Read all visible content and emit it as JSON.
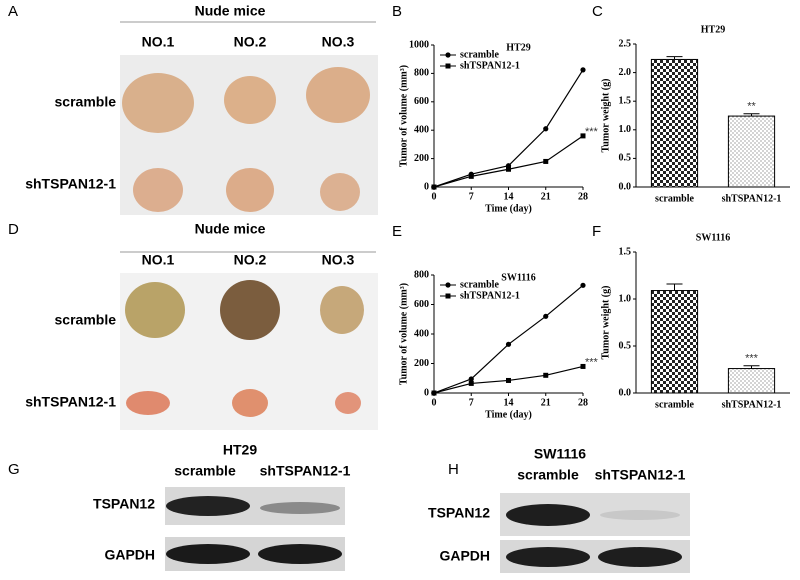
{
  "panels": [
    {
      "letter": "A",
      "title": "Nude mice",
      "columns": [
        "NO.1",
        "NO.2",
        "NO.3"
      ],
      "rows": [
        "scramble",
        "shTSPAN12-1"
      ]
    },
    {
      "letter": "D",
      "title": "Nude mice",
      "columns": [
        "NO.1",
        "NO.2",
        "NO.3"
      ],
      "rows": [
        "scramble",
        "shTSPAN12-1"
      ]
    }
  ],
  "chart_data": [
    {
      "type": "line",
      "letter": "B",
      "title": "HT29",
      "x_label": "Time (day)",
      "y_label": "Tumor of volume (mm³)",
      "x": [
        0,
        7,
        14,
        21,
        28
      ],
      "xlim": [
        0,
        28
      ],
      "xticks": [
        0,
        7,
        14,
        21,
        28
      ],
      "ylim": [
        0,
        1000
      ],
      "yticks": [
        0,
        200,
        400,
        600,
        800,
        1000
      ],
      "series": [
        {
          "name": "scramble",
          "color": "#000000",
          "values": [
            0,
            90,
            150,
            410,
            825
          ]
        },
        {
          "name": "shTSPAN12-1",
          "color": "#000000",
          "values": [
            0,
            75,
            125,
            180,
            360
          ]
        }
      ],
      "annotation": "***"
    },
    {
      "type": "bar",
      "letter": "C",
      "title": "HT29",
      "y_label": "Tumor weight (g)",
      "categories": [
        "scramble",
        "shTSPAN12-1"
      ],
      "values": [
        2.23,
        1.24
      ],
      "errors": [
        0.05,
        0.04
      ],
      "ylim": [
        0,
        2.5
      ],
      "yticks": [
        {
          "value": 0,
          "label": "0.0"
        },
        {
          "value": 0.5,
          "label": "0.5"
        },
        {
          "value": 1,
          "label": "1.0"
        },
        {
          "value": 1.5,
          "label": "1.5"
        },
        {
          "value": 2,
          "label": "2.0"
        },
        {
          "value": 2.5,
          "label": "2.5"
        }
      ],
      "annotation": "**"
    },
    {
      "type": "line",
      "letter": "E",
      "title": "SW1116",
      "x_label": "Time (day)",
      "y_label": "Tumor of volume (mm³)",
      "x": [
        0,
        7,
        14,
        21,
        28
      ],
      "xlim": [
        0,
        28
      ],
      "xticks": [
        0,
        7,
        14,
        21,
        28
      ],
      "ylim": [
        0,
        800
      ],
      "yticks": [
        0,
        200,
        400,
        600,
        800
      ],
      "series": [
        {
          "name": "scramble",
          "color": "#000000",
          "values": [
            0,
            95,
            330,
            520,
            730
          ]
        },
        {
          "name": "shTSPAN12-1",
          "color": "#000000",
          "values": [
            0,
            65,
            85,
            120,
            180
          ]
        }
      ],
      "annotation": "***"
    },
    {
      "type": "bar",
      "letter": "F",
      "title": "SW1116",
      "y_label": "Tumor weight (g)",
      "categories": [
        "scramble",
        "shTSPAN12-1"
      ],
      "values": [
        1.09,
        0.26
      ],
      "errors": [
        0.07,
        0.03
      ],
      "ylim": [
        0,
        1.5
      ],
      "yticks": [
        {
          "value": 0,
          "label": "0.0"
        },
        {
          "value": 0.5,
          "label": "0.5"
        },
        {
          "value": 1,
          "label": "1.0"
        },
        {
          "value": 1.5,
          "label": "1.5"
        }
      ],
      "annotation": "***"
    }
  ],
  "blots": [
    {
      "letter": "G",
      "title": "HT29",
      "lanes": [
        "scramble",
        "shTSPAN12-1"
      ],
      "rows": [
        "TSPAN12",
        "GAPDH"
      ]
    },
    {
      "letter": "H",
      "title": "SW1116",
      "lanes": [
        "scramble",
        "shTSPAN12-1"
      ],
      "rows": [
        "TSPAN12",
        "GAPDH"
      ]
    }
  ]
}
